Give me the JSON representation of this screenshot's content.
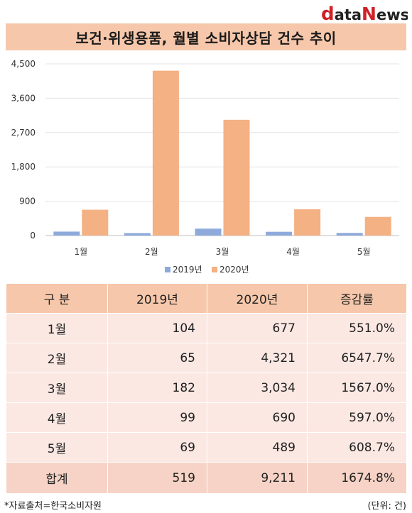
{
  "brand": {
    "logo_d": "d",
    "logo_ata": "ata",
    "logo_n": "N",
    "logo_ews": "ews"
  },
  "title": "보건·위생용품, 월별 소비자상담 건수 추이",
  "chart_data": {
    "type": "bar",
    "categories": [
      "1월",
      "2월",
      "3월",
      "4월",
      "5월"
    ],
    "series": [
      {
        "name": "2019년",
        "values": [
          104,
          65,
          182,
          99,
          69
        ],
        "color": "#8eaadb"
      },
      {
        "name": "2020년",
        "values": [
          677,
          4321,
          3034,
          690,
          489
        ],
        "color": "#f4b183"
      }
    ],
    "yticks": [
      0,
      900,
      1800,
      2700,
      3600,
      4500
    ],
    "ytick_labels": [
      "0",
      "900",
      "1,800",
      "2,700",
      "3,600",
      "4,500"
    ],
    "ylim": [
      0,
      4500
    ],
    "grid": true,
    "legend": "bottom"
  },
  "table": {
    "headers": [
      "구  분",
      "2019년",
      "2020년",
      "증감률"
    ],
    "rows": [
      [
        "1월",
        "104",
        "677",
        "551.0%"
      ],
      [
        "2월",
        "65",
        "4,321",
        "6547.7%"
      ],
      [
        "3월",
        "182",
        "3,034",
        "1567.0%"
      ],
      [
        "4월",
        "99",
        "690",
        "597.0%"
      ],
      [
        "5월",
        "69",
        "489",
        "608.7%"
      ]
    ],
    "total": [
      "합계",
      "519",
      "9,211",
      "1674.8%"
    ]
  },
  "footer": {
    "source": "*자료출처=한국소비자원",
    "unit": "(단위: 건)"
  }
}
